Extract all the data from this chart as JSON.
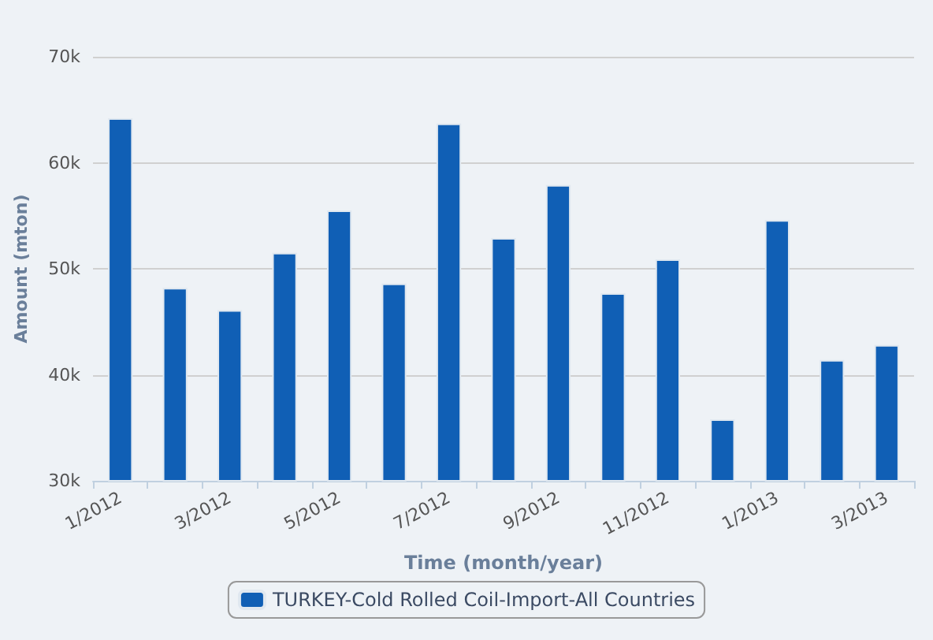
{
  "chart_data": {
    "type": "bar",
    "xlabel": "Time (month/year)",
    "ylabel": "Amount (mton)",
    "categories": [
      "1/2012",
      null,
      "3/2012",
      null,
      "5/2012",
      null,
      "7/2012",
      null,
      "9/2012",
      null,
      "11/2012",
      null,
      "1/2013",
      null,
      "3/2013"
    ],
    "series": [
      {
        "name": "TURKEY-Cold Rolled Coil-Import-All Countries",
        "color": "#105fb5",
        "values": [
          64200,
          48200,
          46100,
          51500,
          55500,
          48600,
          63700,
          52900,
          57900,
          47700,
          50900,
          35800,
          54600,
          41400,
          42800
        ]
      }
    ],
    "ylim": [
      30000,
      70000
    ],
    "yticks": [
      {
        "value": 30000,
        "label": "30k"
      },
      {
        "value": 40000,
        "label": "40k"
      },
      {
        "value": 50000,
        "label": "50k"
      },
      {
        "value": 60000,
        "label": "60k"
      },
      {
        "value": 70000,
        "label": "70k"
      }
    ],
    "grid": "y",
    "legend": "bottom"
  }
}
